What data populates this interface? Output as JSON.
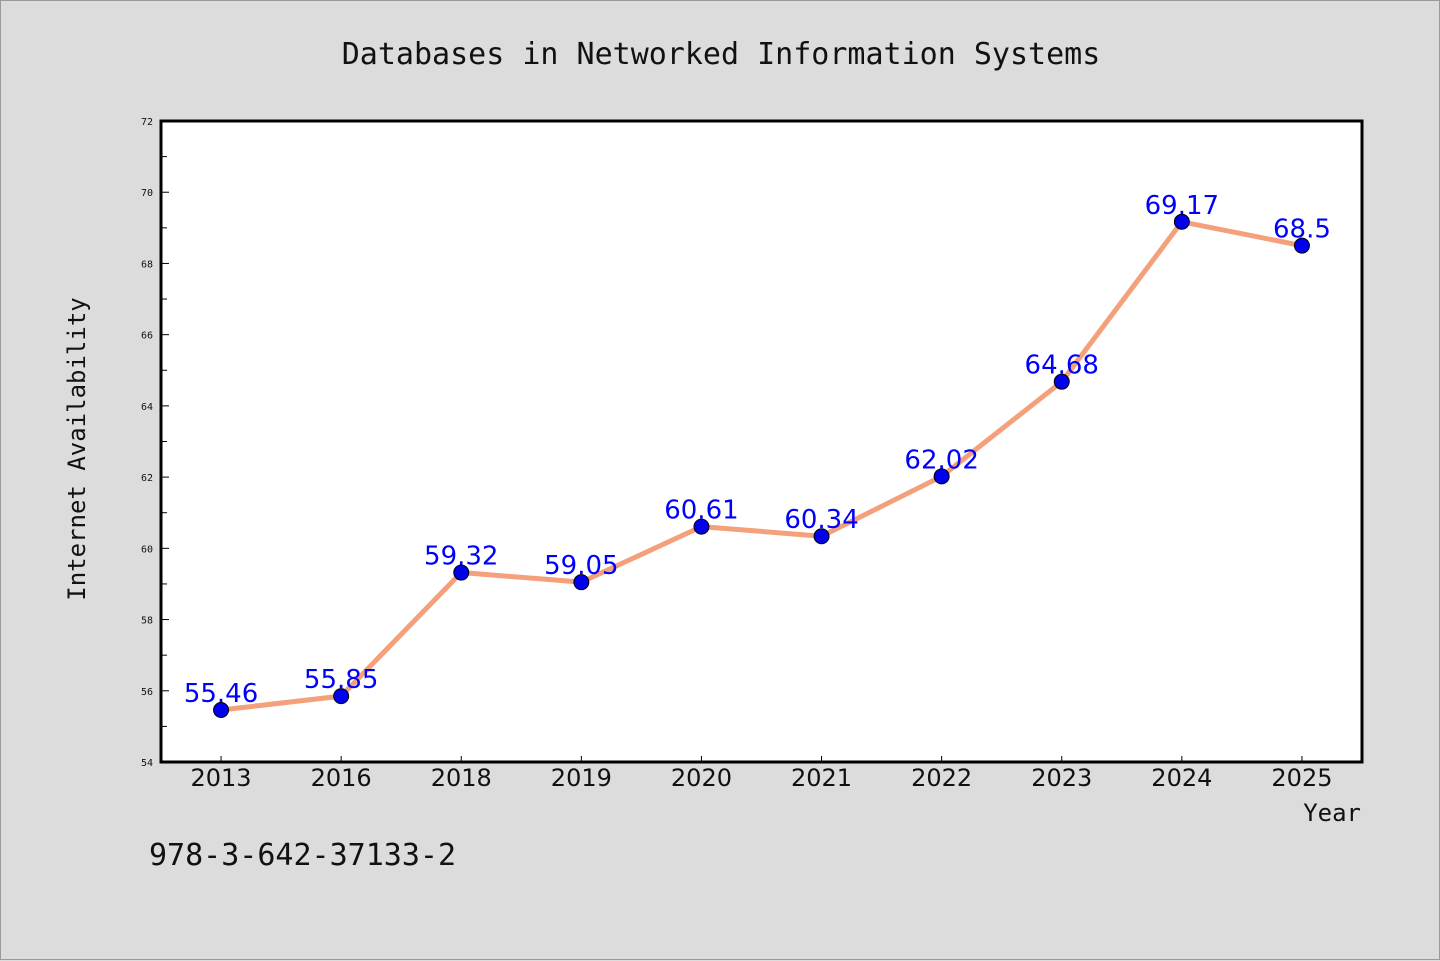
{
  "chart_data": {
    "type": "line",
    "title": "Databases in Networked Information Systems",
    "xlabel": "Year",
    "ylabel": "Internet Availability",
    "categories": [
      "2013",
      "2016",
      "2018",
      "2019",
      "2020",
      "2021",
      "2022",
      "2023",
      "2024",
      "2025"
    ],
    "series": [
      {
        "values": [
          55.46,
          55.85,
          59.32,
          59.05,
          60.61,
          60.34,
          62.02,
          64.68,
          69.17,
          68.5
        ],
        "data_labels": [
          "55.46",
          "55.85",
          "59.32",
          "59.05",
          "60.61",
          "60.34",
          "62.02",
          "64.68",
          "69.17",
          "68.5"
        ],
        "line_color": "#f4a07a",
        "marker_color": "#0000ee"
      }
    ],
    "ylim": [
      54,
      72
    ],
    "yticks": [
      "54",
      "56",
      "58",
      "60",
      "62",
      "64",
      "66",
      "68",
      "70",
      "72"
    ],
    "grid": false,
    "legend": "none"
  },
  "annotation": "978-3-642-37133-2",
  "colors": {
    "background": "#dcdcdc",
    "plot_background": "#ffffff",
    "line": "#f4a07a",
    "marker": "#0000ee",
    "data_label": "#0000ff"
  }
}
